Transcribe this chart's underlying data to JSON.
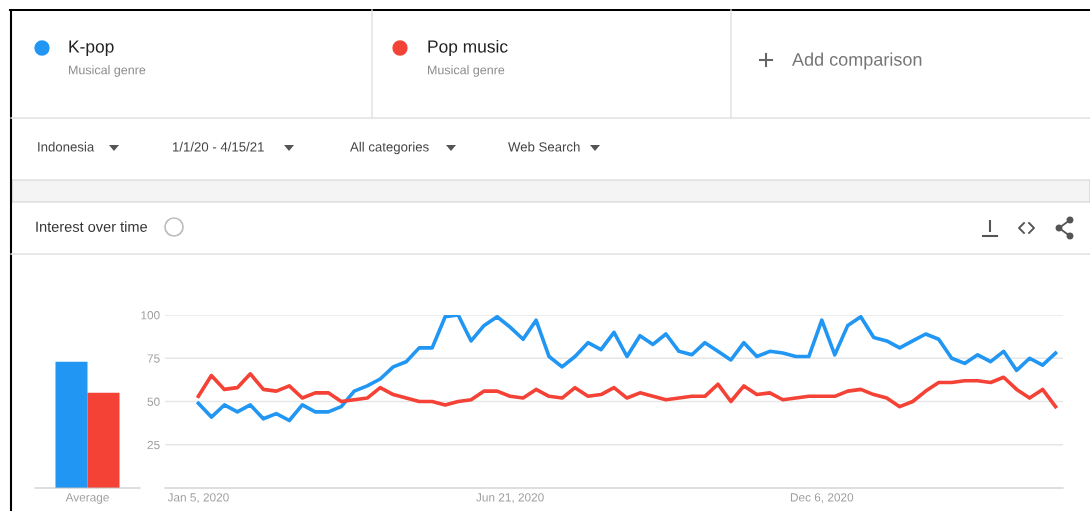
{
  "chart_data": [
    {
      "type": "bar",
      "title": "Interest over time",
      "categories": [
        "Average"
      ],
      "series": [
        {
          "color": "#2196f3",
          "values": [
            73
          ]
        },
        {
          "color": "#f44336",
          "values": [
            55
          ]
        }
      ],
      "ylim": [
        0,
        100
      ],
      "tick_labels": "x",
      "grid": false,
      "legend": false
    },
    {
      "type": "line",
      "x": [
        "2020-01-05",
        "2020-01-12",
        "2020-01-19",
        "2020-01-26",
        "2020-02-02",
        "2020-02-09",
        "2020-02-16",
        "2020-02-23",
        "2020-03-01",
        "2020-03-08",
        "2020-03-15",
        "2020-03-22",
        "2020-03-29",
        "2020-04-05",
        "2020-04-12",
        "2020-04-19",
        "2020-04-26",
        "2020-05-03",
        "2020-05-10",
        "2020-05-17",
        "2020-05-24",
        "2020-05-31",
        "2020-06-07",
        "2020-06-14",
        "2020-06-21",
        "2020-06-28",
        "2020-07-05",
        "2020-07-12",
        "2020-07-19",
        "2020-07-26",
        "2020-08-02",
        "2020-08-09",
        "2020-08-16",
        "2020-08-23",
        "2020-08-30",
        "2020-09-06",
        "2020-09-13",
        "2020-09-20",
        "2020-09-27",
        "2020-10-04",
        "2020-10-11",
        "2020-10-18",
        "2020-10-25",
        "2020-11-01",
        "2020-11-08",
        "2020-11-15",
        "2020-11-22",
        "2020-11-29",
        "2020-12-06",
        "2020-12-13",
        "2020-12-20",
        "2020-12-27",
        "2021-01-03",
        "2021-01-10",
        "2021-01-17",
        "2021-01-24",
        "2021-01-31",
        "2021-02-07",
        "2021-02-14",
        "2021-02-21",
        "2021-02-28",
        "2021-03-07",
        "2021-03-14",
        "2021-03-21",
        "2021-03-28",
        "2021-04-04",
        "2021-04-11"
      ],
      "series": [
        {
          "name": "K-pop",
          "color": "#2196f3",
          "values": [
            49,
            41,
            48,
            44,
            48,
            40,
            43,
            39,
            48,
            44,
            44,
            47,
            56,
            59,
            63,
            70,
            73,
            81,
            81,
            99,
            100,
            85,
            94,
            99,
            93,
            86,
            97,
            76,
            70,
            76,
            84,
            80,
            90,
            76,
            88,
            83,
            89,
            79,
            77,
            84,
            79,
            74,
            84,
            76,
            79,
            78,
            76,
            76,
            97,
            77,
            94,
            99,
            87,
            85,
            81,
            85,
            89,
            86,
            75,
            72,
            77,
            73,
            79,
            68,
            75,
            71,
            78
          ]
        },
        {
          "name": "Pop music",
          "color": "#f44336",
          "values": [
            53,
            65,
            57,
            58,
            66,
            57,
            56,
            59,
            52,
            55,
            55,
            50,
            51,
            52,
            58,
            54,
            52,
            50,
            50,
            48,
            50,
            51,
            56,
            56,
            53,
            52,
            57,
            53,
            52,
            58,
            53,
            54,
            58,
            52,
            55,
            53,
            51,
            52,
            53,
            53,
            60,
            50,
            59,
            54,
            55,
            51,
            52,
            53,
            53,
            53,
            56,
            57,
            54,
            52,
            47,
            50,
            56,
            61,
            61,
            62,
            62,
            61,
            64,
            57,
            52,
            57,
            47
          ]
        }
      ],
      "xlim": [
        "2019-12-18",
        "2021-04-15"
      ],
      "xticks": [
        {
          "value": "2020-01-05",
          "label": "Jan 5, 2020"
        },
        {
          "value": "2020-06-21",
          "label": "Jun 21, 2020"
        },
        {
          "value": "2020-12-06",
          "label": "Dec 6, 2020"
        }
      ],
      "ylim": [
        0,
        100
      ],
      "yticks": [
        25,
        50,
        75,
        100
      ],
      "grid": "y",
      "legend": "top",
      "marker": "none",
      "line_style": "solid",
      "annotations": [
        "Musical genre",
        "Musical genre",
        "Add comparison",
        "Indonesia",
        "1/1/20 - 4/15/21",
        "All categories",
        "Web Search"
      ]
    }
  ]
}
